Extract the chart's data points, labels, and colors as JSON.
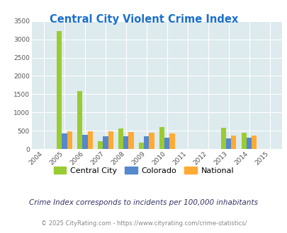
{
  "title": "Central City Violent Crime Index",
  "years": [
    2004,
    2005,
    2006,
    2007,
    2008,
    2009,
    2010,
    2011,
    2012,
    2013,
    2014,
    2015
  ],
  "central_city": [
    0,
    3220,
    1590,
    215,
    555,
    175,
    610,
    0,
    0,
    590,
    455,
    0
  ],
  "colorado": [
    0,
    420,
    390,
    345,
    345,
    345,
    320,
    0,
    0,
    295,
    310,
    0
  ],
  "national": [
    0,
    490,
    490,
    485,
    460,
    440,
    425,
    0,
    0,
    370,
    365,
    0
  ],
  "color_city": "#99cc33",
  "color_colorado": "#5588cc",
  "color_national": "#ffaa33",
  "ylim": [
    0,
    3500
  ],
  "yticks": [
    0,
    500,
    1000,
    1500,
    2000,
    2500,
    3000,
    3500
  ],
  "bg_color": "#ddeaee",
  "grid_color": "#ffffff",
  "title_color": "#1a6fcc",
  "footnote1": "Crime Index corresponds to incidents per 100,000 inhabitants",
  "footnote2": "© 2025 CityRating.com - https://www.cityrating.com/crime-statistics/",
  "bar_width": 0.25
}
